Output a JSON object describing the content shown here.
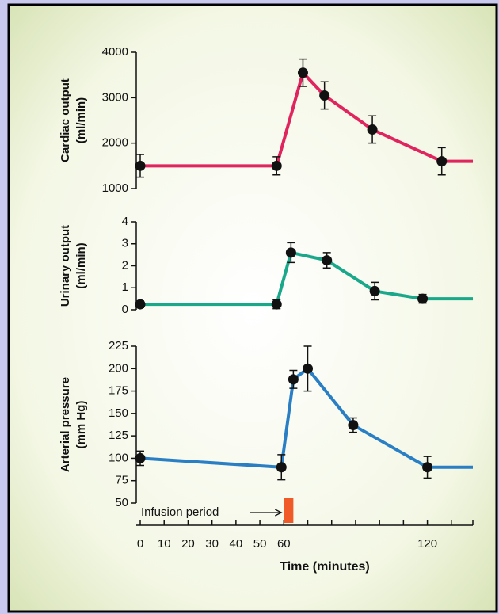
{
  "chart_data": {
    "type": "line",
    "xlabel": "Time (minutes)",
    "xlim": [
      0,
      139
    ],
    "xticks": [
      0,
      10,
      20,
      30,
      40,
      50,
      60,
      120
    ],
    "xminor_ticks": [
      70,
      80,
      90,
      100,
      110,
      130
    ],
    "infusion": {
      "label": "Infusion period",
      "start": 60,
      "end": 64,
      "color": "#f05a28"
    },
    "panels": [
      {
        "ylabel": [
          "Cardiac output",
          "(ml/min)"
        ],
        "ylim": [
          1000,
          4000
        ],
        "yticks": [
          1000,
          2000,
          3000,
          4000
        ],
        "color": "#e0245e",
        "x": [
          0,
          57,
          68,
          77,
          97,
          126,
          139
        ],
        "values": [
          1500,
          1500,
          3550,
          3050,
          2300,
          1600,
          1600
        ],
        "errors": [
          250,
          200,
          300,
          300,
          300,
          300,
          null
        ]
      },
      {
        "ylabel": [
          "Urinary output",
          "(ml/min)"
        ],
        "ylim": [
          0,
          4
        ],
        "yticks": [
          0,
          1,
          2,
          3,
          4
        ],
        "color": "#1aa88a",
        "x": [
          0,
          57,
          63,
          78,
          98,
          118,
          139
        ],
        "values": [
          0.25,
          0.25,
          2.6,
          2.25,
          0.85,
          0.5,
          0.5
        ],
        "errors": [
          0.15,
          0.2,
          0.45,
          0.35,
          0.4,
          0.2,
          null
        ]
      },
      {
        "ylabel": [
          "Arterial pressure",
          "(mm Hg)"
        ],
        "ylim": [
          50,
          225
        ],
        "yticks": [
          50,
          75,
          100,
          125,
          150,
          175,
          200,
          225
        ],
        "color": "#2a7fc4",
        "x": [
          0,
          59,
          64,
          70,
          89,
          120,
          139
        ],
        "values": [
          100,
          90,
          188,
          200,
          137,
          90,
          90
        ],
        "errors": [
          8,
          14,
          10,
          25,
          8,
          12,
          null
        ]
      }
    ]
  }
}
